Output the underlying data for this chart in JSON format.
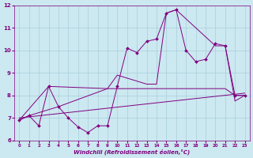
{
  "xlabel": "Windchill (Refroidissement éolien,°C)",
  "background_color": "#cce8f0",
  "line_color": "#800080",
  "xlim_min": -0.5,
  "xlim_max": 23.5,
  "ylim_min": 6.0,
  "ylim_max": 12.0,
  "yticks": [
    6,
    7,
    8,
    9,
    10,
    11,
    12
  ],
  "xticks": [
    0,
    1,
    2,
    3,
    4,
    5,
    6,
    7,
    8,
    9,
    10,
    11,
    12,
    13,
    14,
    15,
    16,
    17,
    18,
    19,
    20,
    21,
    22,
    23
  ],
  "line1_x": [
    0,
    1,
    2,
    3,
    4,
    5,
    6,
    7,
    8,
    9,
    10,
    11,
    12,
    13,
    14,
    15,
    16,
    17,
    18,
    19,
    20,
    21,
    22,
    23
  ],
  "line1_y": [
    6.9,
    7.1,
    6.65,
    8.4,
    7.5,
    7.0,
    6.6,
    6.35,
    6.65,
    6.65,
    8.4,
    10.1,
    9.9,
    10.4,
    10.5,
    11.65,
    11.8,
    10.0,
    9.5,
    9.6,
    10.3,
    10.2,
    8.0,
    8.0
  ],
  "line2_x": [
    0,
    3,
    9,
    10,
    19,
    20,
    21,
    22,
    23
  ],
  "line2_y": [
    6.9,
    8.4,
    8.3,
    8.3,
    8.3,
    8.3,
    8.3,
    8.0,
    8.0
  ],
  "line3_x": [
    0,
    1,
    4,
    9,
    10,
    13,
    14,
    15,
    16,
    20,
    21,
    22,
    23
  ],
  "line3_y": [
    6.9,
    7.1,
    7.5,
    8.3,
    8.9,
    8.5,
    8.5,
    11.65,
    11.8,
    10.2,
    10.2,
    7.75,
    8.0
  ],
  "line4_x": [
    0,
    23
  ],
  "line4_y": [
    7.0,
    8.1
  ],
  "grid_color": "#a0c8d8",
  "tick_color": "#800080",
  "xlabel_color": "#800080"
}
